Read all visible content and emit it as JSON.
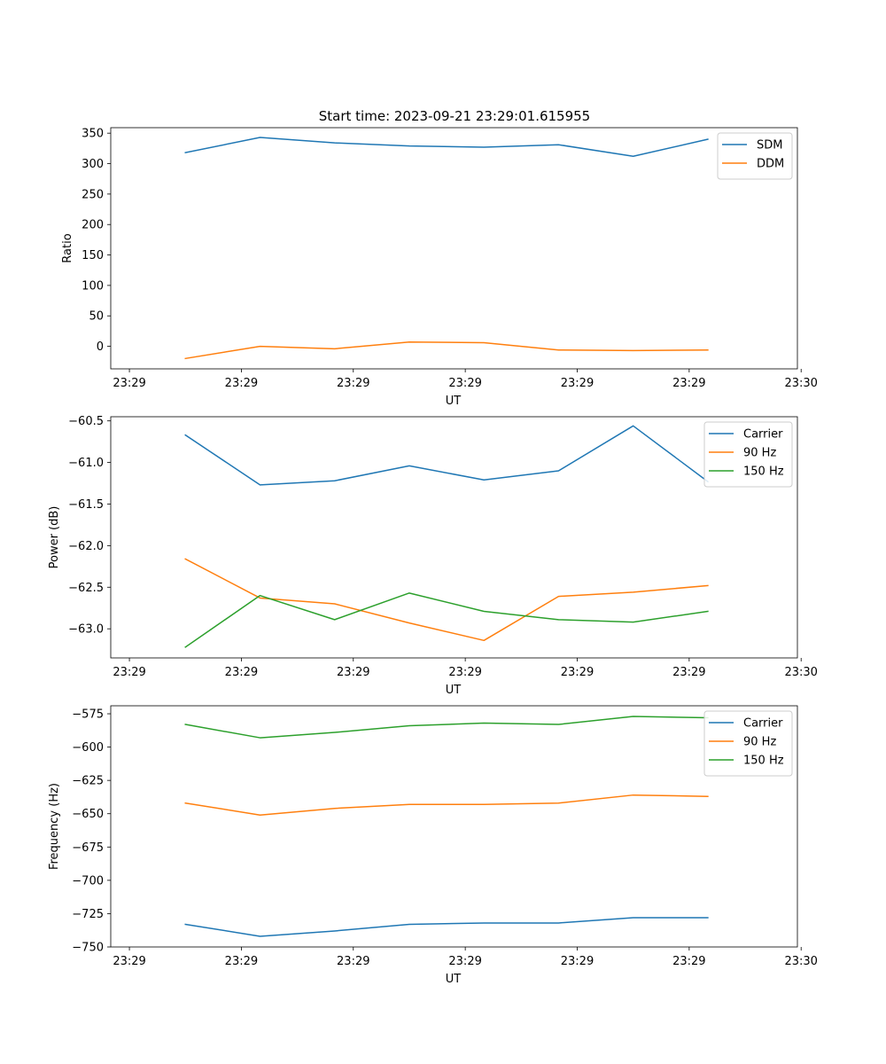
{
  "figure_title": "Start time: 2023-09-21 23:29:01.615955",
  "chart_data": [
    {
      "type": "line",
      "title": "Start time: 2023-09-21 23:29:01.615955",
      "xlabel": "UT",
      "ylabel": "Ratio",
      "x": [
        1.0,
        2.0,
        3.0,
        4.0,
        5.0,
        6.0,
        7.0,
        8.0
      ],
      "xlim": [
        0,
        9.2
      ],
      "xticks": [
        0.25,
        1.75,
        3.25,
        4.75,
        6.25,
        7.75,
        9.25
      ],
      "xtick_labels": [
        "23:29",
        "23:29",
        "23:29",
        "23:29",
        "23:29",
        "23:29",
        "23:30"
      ],
      "ylim": [
        -37,
        359
      ],
      "yticks": [
        0,
        50,
        100,
        150,
        200,
        250,
        300,
        350
      ],
      "ytick_labels": [
        "0",
        "50",
        "100",
        "150",
        "200",
        "250",
        "300",
        "350"
      ],
      "legend_position": "top-right",
      "series": [
        {
          "name": "SDM",
          "color": "#1f77b4",
          "values": [
            318,
            343,
            334,
            329,
            327,
            331,
            312,
            340
          ]
        },
        {
          "name": "DDM",
          "color": "#ff7f0e",
          "values": [
            -20,
            0,
            -4,
            7,
            6,
            -6,
            -7,
            -6
          ]
        }
      ]
    },
    {
      "type": "line",
      "xlabel": "UT",
      "ylabel": "Power (dB)",
      "x": [
        1.0,
        2.0,
        3.0,
        4.0,
        5.0,
        6.0,
        7.0,
        8.0
      ],
      "xlim": [
        0,
        9.2
      ],
      "xticks": [
        0.25,
        1.75,
        3.25,
        4.75,
        6.25,
        7.75,
        9.25
      ],
      "xtick_labels": [
        "23:29",
        "23:29",
        "23:29",
        "23:29",
        "23:29",
        "23:29",
        "23:30"
      ],
      "ylim": [
        -63.35,
        -60.45
      ],
      "yticks": [
        -63.0,
        -62.5,
        -62.0,
        -61.5,
        -61.0,
        -60.5
      ],
      "ytick_labels": [
        "−63.0",
        "−62.5",
        "−62.0",
        "−61.5",
        "−61.0",
        "−60.5"
      ],
      "legend_position": "top-right",
      "series": [
        {
          "name": "Carrier",
          "color": "#1f77b4",
          "values": [
            -60.67,
            -61.27,
            -61.22,
            -61.04,
            -61.21,
            -61.1,
            -60.56,
            -61.23
          ]
        },
        {
          "name": "90 Hz",
          "color": "#ff7f0e",
          "values": [
            -62.16,
            -62.63,
            -62.7,
            -62.93,
            -63.14,
            -62.61,
            -62.56,
            -62.48
          ]
        },
        {
          "name": "150 Hz",
          "color": "#2ca02c",
          "values": [
            -63.22,
            -62.6,
            -62.89,
            -62.57,
            -62.79,
            -62.89,
            -62.92,
            -62.79
          ]
        }
      ]
    },
    {
      "type": "line",
      "xlabel": "UT",
      "ylabel": "Frequency (Hz)",
      "x": [
        1.0,
        2.0,
        3.0,
        4.0,
        5.0,
        6.0,
        7.0,
        8.0
      ],
      "xlim": [
        0,
        9.2
      ],
      "xticks": [
        0.25,
        1.75,
        3.25,
        4.75,
        6.25,
        7.75,
        9.25
      ],
      "xtick_labels": [
        "23:29",
        "23:29",
        "23:29",
        "23:29",
        "23:29",
        "23:29",
        "23:30"
      ],
      "ylim": [
        -750,
        -569
      ],
      "yticks": [
        -750,
        -725,
        -700,
        -675,
        -650,
        -625,
        -600,
        -575
      ],
      "ytick_labels": [
        "−750",
        "−725",
        "−700",
        "−675",
        "−650",
        "−625",
        "−600",
        "−575"
      ],
      "legend_position": "top-right",
      "series": [
        {
          "name": "Carrier",
          "color": "#1f77b4",
          "values": [
            -733,
            -742,
            -738,
            -733,
            -732,
            -732,
            -728,
            -728
          ]
        },
        {
          "name": "90 Hz",
          "color": "#ff7f0e",
          "values": [
            -642,
            -651,
            -646,
            -643,
            -643,
            -642,
            -636,
            -637
          ]
        },
        {
          "name": "150 Hz",
          "color": "#2ca02c",
          "values": [
            -583,
            -593,
            -589,
            -584,
            -582,
            -583,
            -577,
            -578
          ]
        }
      ]
    }
  ]
}
